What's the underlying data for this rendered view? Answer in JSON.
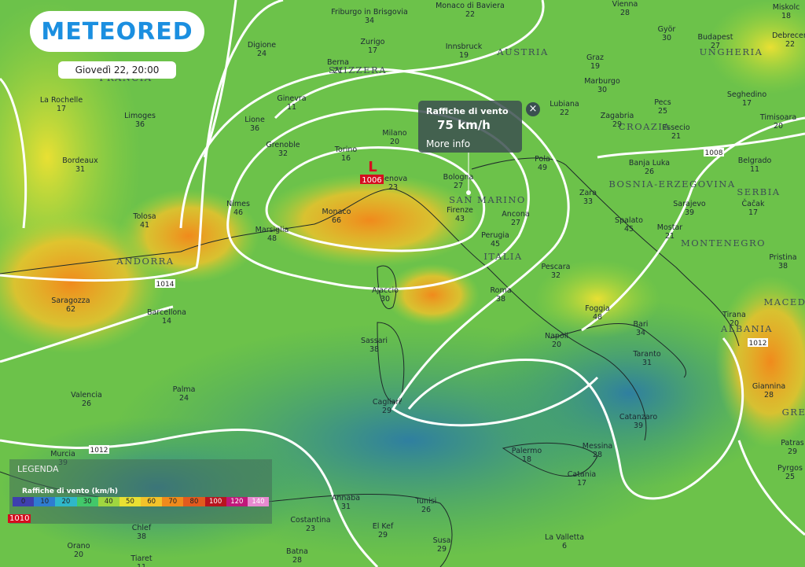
{
  "header": {
    "logo": "METEORED",
    "date": "Giovedì 22, 20:00"
  },
  "popup": {
    "title": "Raffiche di vento",
    "value": "75 km/h",
    "link": "More info"
  },
  "low": {
    "letter": "L",
    "pressure": "1006"
  },
  "isobars": [
    "1008",
    "1014",
    "1012",
    "1012"
  ],
  "legend": {
    "title": "LEGENDA",
    "subtitle": "Raffiche di vento (km/h)",
    "scale": [
      0,
      10,
      20,
      30,
      40,
      50,
      60,
      70,
      80,
      100,
      120,
      140
    ],
    "pressure": "1010"
  },
  "countries": [
    "FRANCIA",
    "SVIZZERA",
    "AUSTRIA",
    "UNGHERIA",
    "CROAZIA",
    "BOSNIA-ERZEGOVINA",
    "SERBIA",
    "MONTENEGRO",
    "ITALIA",
    "ANDORRA",
    "SAN MARINO",
    "ALBANIA",
    "MACEDO",
    "GRE"
  ],
  "cities": [
    {
      "name": "Friburgo in Brisgovia",
      "value": 34
    },
    {
      "name": "Monaco di Baviera",
      "value": 22
    },
    {
      "name": "Vienna",
      "value": 28
    },
    {
      "name": "Miskolc",
      "value": 18
    },
    {
      "name": "Digione",
      "value": 24
    },
    {
      "name": "Zurigo",
      "value": 17
    },
    {
      "name": "Innsbruck",
      "value": 19
    },
    {
      "name": "Györ",
      "value": 30
    },
    {
      "name": "Budapest",
      "value": 27
    },
    {
      "name": "Debrecen",
      "value": 22
    },
    {
      "name": "Berna",
      "value": 21
    },
    {
      "name": "Graz",
      "value": 19
    },
    {
      "name": "Marburgo",
      "value": 30
    },
    {
      "name": "La Rochelle",
      "value": 17
    },
    {
      "name": "Limoges",
      "value": 36
    },
    {
      "name": "Ginevra",
      "value": 11
    },
    {
      "name": "Lione",
      "value": 36
    },
    {
      "name": "Milano",
      "value": 20
    },
    {
      "name": "Lubiana",
      "value": 22
    },
    {
      "name": "Zagabria",
      "value": 29
    },
    {
      "name": "Pecs",
      "value": 25
    },
    {
      "name": "Seghedino",
      "value": 17
    },
    {
      "name": "Timisoara",
      "value": 20
    },
    {
      "name": "Essecio",
      "value": 21
    },
    {
      "name": "Bordeaux",
      "value": 31
    },
    {
      "name": "Grenoble",
      "value": 32
    },
    {
      "name": "Torino",
      "value": 16
    },
    {
      "name": "Pola",
      "value": 49
    },
    {
      "name": "Banja Luka",
      "value": 26
    },
    {
      "name": "Belgrado",
      "value": 11
    },
    {
      "name": "Genova",
      "value": 23
    },
    {
      "name": "Bologna",
      "value": 27
    },
    {
      "name": "Zara",
      "value": 33
    },
    {
      "name": "Sarajevo",
      "value": 39
    },
    {
      "name": "Čačak",
      "value": 17
    },
    {
      "name": "Tolosa",
      "value": 41
    },
    {
      "name": "Nimes",
      "value": 46
    },
    {
      "name": "Monaco",
      "value": 66
    },
    {
      "name": "Firenze",
      "value": 43
    },
    {
      "name": "Ancona",
      "value": 27
    },
    {
      "name": "Spalato",
      "value": 45
    },
    {
      "name": "Mostar",
      "value": 21
    },
    {
      "name": "Marsiglia",
      "value": 48
    },
    {
      "name": "Perugia",
      "value": 45
    },
    {
      "name": "Pristina",
      "value": 38
    },
    {
      "name": "Pescara",
      "value": 32
    },
    {
      "name": "Ajaccio",
      "value": 30
    },
    {
      "name": "Roma",
      "value": 38
    },
    {
      "name": "Saragozza",
      "value": 62
    },
    {
      "name": "Barcellona",
      "value": 14
    },
    {
      "name": "Foggia",
      "value": 48
    },
    {
      "name": "Bari",
      "value": 34
    },
    {
      "name": "Tirana",
      "value": 20
    },
    {
      "name": "Sassari",
      "value": 38
    },
    {
      "name": "Napoli",
      "value": 20
    },
    {
      "name": "Taranto",
      "value": 31
    },
    {
      "name": "Valencia",
      "value": 26
    },
    {
      "name": "Palma",
      "value": 24
    },
    {
      "name": "Cagliari",
      "value": 29
    },
    {
      "name": "Giannina",
      "value": 28
    },
    {
      "name": "Catanzaro",
      "value": 39
    },
    {
      "name": "Murcia",
      "value": 39
    },
    {
      "name": "Palermo",
      "value": 18
    },
    {
      "name": "Messina",
      "value": 28
    },
    {
      "name": "Catania",
      "value": 17
    },
    {
      "name": "Patras",
      "value": 29
    },
    {
      "name": "Pyrgos",
      "value": 25
    },
    {
      "name": "Annaba",
      "value": 31
    },
    {
      "name": "Tunisi",
      "value": 26
    },
    {
      "name": "Costantina",
      "value": 23
    },
    {
      "name": "El Kef",
      "value": 29
    },
    {
      "name": "Chlef",
      "value": 38
    },
    {
      "name": "Orano",
      "value": 20
    },
    {
      "name": "Batna",
      "value": 28
    },
    {
      "name": "Susa",
      "value": 29
    },
    {
      "name": "La Valletta",
      "value": 6
    },
    {
      "name": "Tiaret",
      "value": 11
    }
  ]
}
